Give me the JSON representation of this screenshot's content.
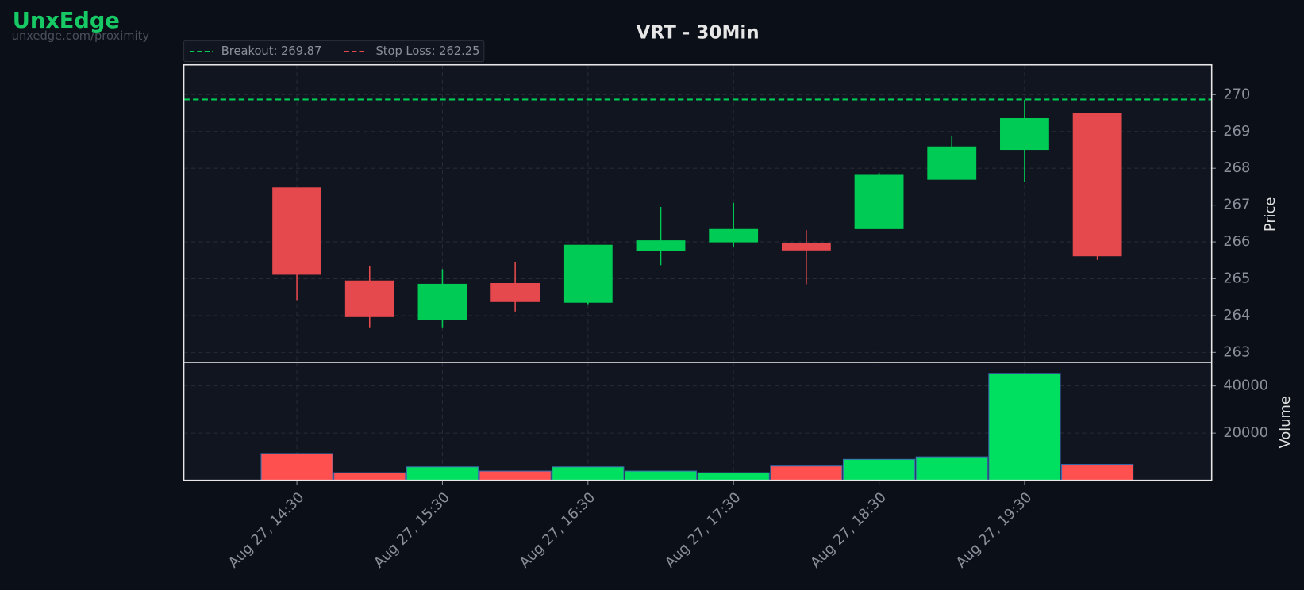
{
  "brand": {
    "name": "UnxEdge",
    "url": "unxedge.com/proximity"
  },
  "chart_data": {
    "type": "candlestick",
    "title": "VRT - 30Min",
    "categories": [
      "Aug 27, 14:30",
      null,
      "Aug 27, 15:30",
      null,
      "Aug 27, 16:30",
      null,
      "Aug 27, 17:30",
      null,
      "Aug 27, 18:30",
      null,
      "Aug 27, 19:30",
      null
    ],
    "open": [
      267.47,
      264.94,
      263.9,
      264.87,
      264.36,
      265.76,
      266.0,
      265.96,
      266.36,
      267.7,
      268.51,
      269.5
    ],
    "high": [
      267.47,
      265.35,
      265.26,
      265.46,
      265.91,
      266.95,
      267.06,
      266.32,
      267.88,
      268.89,
      269.86,
      269.5
    ],
    "low": [
      264.42,
      263.68,
      263.68,
      264.11,
      264.31,
      265.37,
      265.85,
      264.85,
      266.36,
      267.7,
      267.63,
      265.51
    ],
    "close": [
      265.12,
      263.97,
      264.85,
      264.38,
      265.91,
      266.03,
      266.34,
      265.78,
      267.81,
      268.58,
      269.35,
      265.62
    ],
    "up_color": "#00cc55",
    "down_color": "#e5484d",
    "ylim": [
      262.73,
      270.81
    ],
    "yticks": [
      263,
      264,
      265,
      266,
      267,
      268,
      269,
      270
    ],
    "ylabel": "Price",
    "grid": true,
    "legend": "upper left",
    "lines": [
      {
        "label": "Breakout: 269.87",
        "value": 269.87,
        "color": "#00cc55"
      },
      {
        "label": "Stop Loss: 262.25",
        "value": 262.25,
        "color": "#e5484d"
      }
    ],
    "volume": {
      "ylabel": "Volume",
      "values": [
        11330,
        3190,
        5660,
        3890,
        5660,
        3890,
        3190,
        6020,
        8850,
        9910,
        45310,
        6730
      ],
      "ylim": [
        0,
        50000
      ],
      "yticks": [
        20000,
        40000
      ],
      "up_color": "#00e060",
      "down_color": "#ff5050"
    }
  }
}
